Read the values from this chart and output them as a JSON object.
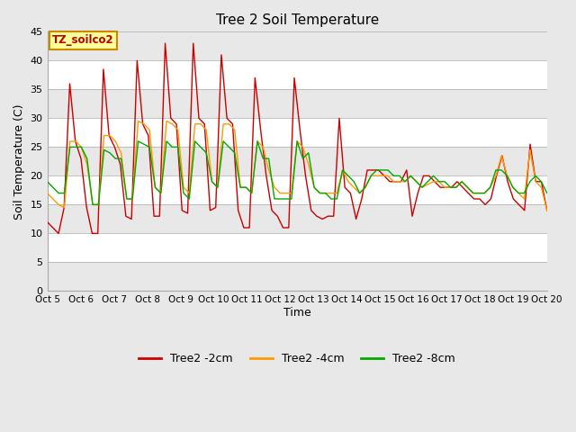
{
  "title": "Tree 2 Soil Temperature",
  "xlabel": "Time",
  "ylabel": "Soil Temperature (C)",
  "ylim": [
    0,
    45
  ],
  "yticks": [
    0,
    5,
    10,
    15,
    20,
    25,
    30,
    35,
    40,
    45
  ],
  "xlim": [
    0,
    15
  ],
  "xtick_labels": [
    "Oct 5",
    "Oct 6",
    "Oct 7",
    "Oct 8",
    "Oct 9",
    "Oct 10",
    "Oct 11",
    "Oct 12",
    "Oct 13",
    "Oct 14",
    "Oct 15",
    "Oct 16",
    "Oct 17",
    "Oct 18",
    "Oct 19",
    "Oct 20"
  ],
  "xtick_positions": [
    0,
    1,
    2,
    3,
    4,
    5,
    6,
    7,
    8,
    9,
    10,
    11,
    12,
    13,
    14,
    15
  ],
  "annotation_text": "TZ_soilco2",
  "annotation_box_color": "#ffff99",
  "annotation_border_color": "#cc8800",
  "line_colors": [
    "#cc0000",
    "#ff9900",
    "#00aa00"
  ],
  "line_labels": [
    "Tree2 -2cm",
    "Tree2 -4cm",
    "Tree2 -8cm"
  ],
  "fig_bg_color": "#e8e8e8",
  "plot_bg_color": "#ffffff",
  "band_colors": [
    "#ffffff",
    "#e8e8e8"
  ],
  "grid_color": "#cccccc",
  "series_2cm": [
    12,
    11,
    10,
    14.5,
    36,
    26,
    23,
    14.5,
    10,
    10,
    38.5,
    27,
    25,
    22,
    13,
    12.5,
    40,
    29,
    27,
    13,
    13,
    43,
    30,
    29,
    14,
    13.5,
    43,
    30,
    29,
    14,
    14.5,
    41,
    30,
    29,
    14,
    11,
    11,
    37,
    28,
    20,
    14,
    13,
    11,
    11,
    37,
    28,
    20,
    14,
    13,
    12.5,
    13,
    13,
    30,
    18,
    17,
    12.5,
    16,
    21,
    21,
    21,
    20,
    19,
    19,
    19,
    21,
    13,
    17,
    20,
    20,
    19,
    18,
    18,
    18,
    19,
    18,
    17,
    16,
    16,
    15,
    16,
    20,
    23.5,
    19,
    16,
    15,
    14,
    25.5,
    19,
    19,
    14
  ],
  "series_4cm": [
    17,
    16,
    15,
    14.5,
    26,
    26,
    25,
    22,
    15,
    15,
    27,
    27,
    26,
    24,
    16,
    16,
    29.5,
    29,
    28,
    18,
    17,
    29.5,
    29,
    28,
    18,
    17,
    29,
    29,
    28,
    19,
    18,
    29,
    29,
    28,
    18,
    18,
    17,
    26,
    25,
    21,
    18,
    17,
    17,
    17,
    26,
    25,
    22,
    18,
    17,
    17,
    17,
    17,
    21,
    19,
    18,
    17,
    18,
    20,
    20,
    20,
    20,
    19,
    19,
    19,
    20,
    19,
    18,
    18.5,
    19,
    19,
    18,
    18,
    18,
    19,
    18,
    17,
    17,
    17,
    18,
    20,
    23.5,
    20,
    18,
    17,
    16,
    24.5,
    19,
    18,
    14
  ],
  "series_8cm": [
    19,
    18,
    17,
    17,
    25,
    25,
    25,
    23,
    15,
    15,
    24.5,
    24,
    23,
    23,
    16,
    16,
    26,
    25.5,
    25,
    18,
    17,
    26,
    25,
    25,
    17,
    16,
    26,
    25,
    24,
    19,
    18,
    26,
    25,
    24,
    18,
    18,
    17,
    26,
    23,
    23,
    16,
    16,
    16,
    16,
    26,
    23,
    24,
    18,
    17,
    17,
    16,
    16,
    21,
    20,
    19,
    17,
    18,
    20,
    21,
    21,
    21,
    20,
    20,
    19,
    20,
    19,
    18,
    19,
    20,
    19,
    19,
    18,
    18,
    19,
    18,
    17,
    17,
    17,
    18,
    21,
    21,
    20,
    18,
    17,
    17,
    19,
    20,
    19,
    17
  ]
}
